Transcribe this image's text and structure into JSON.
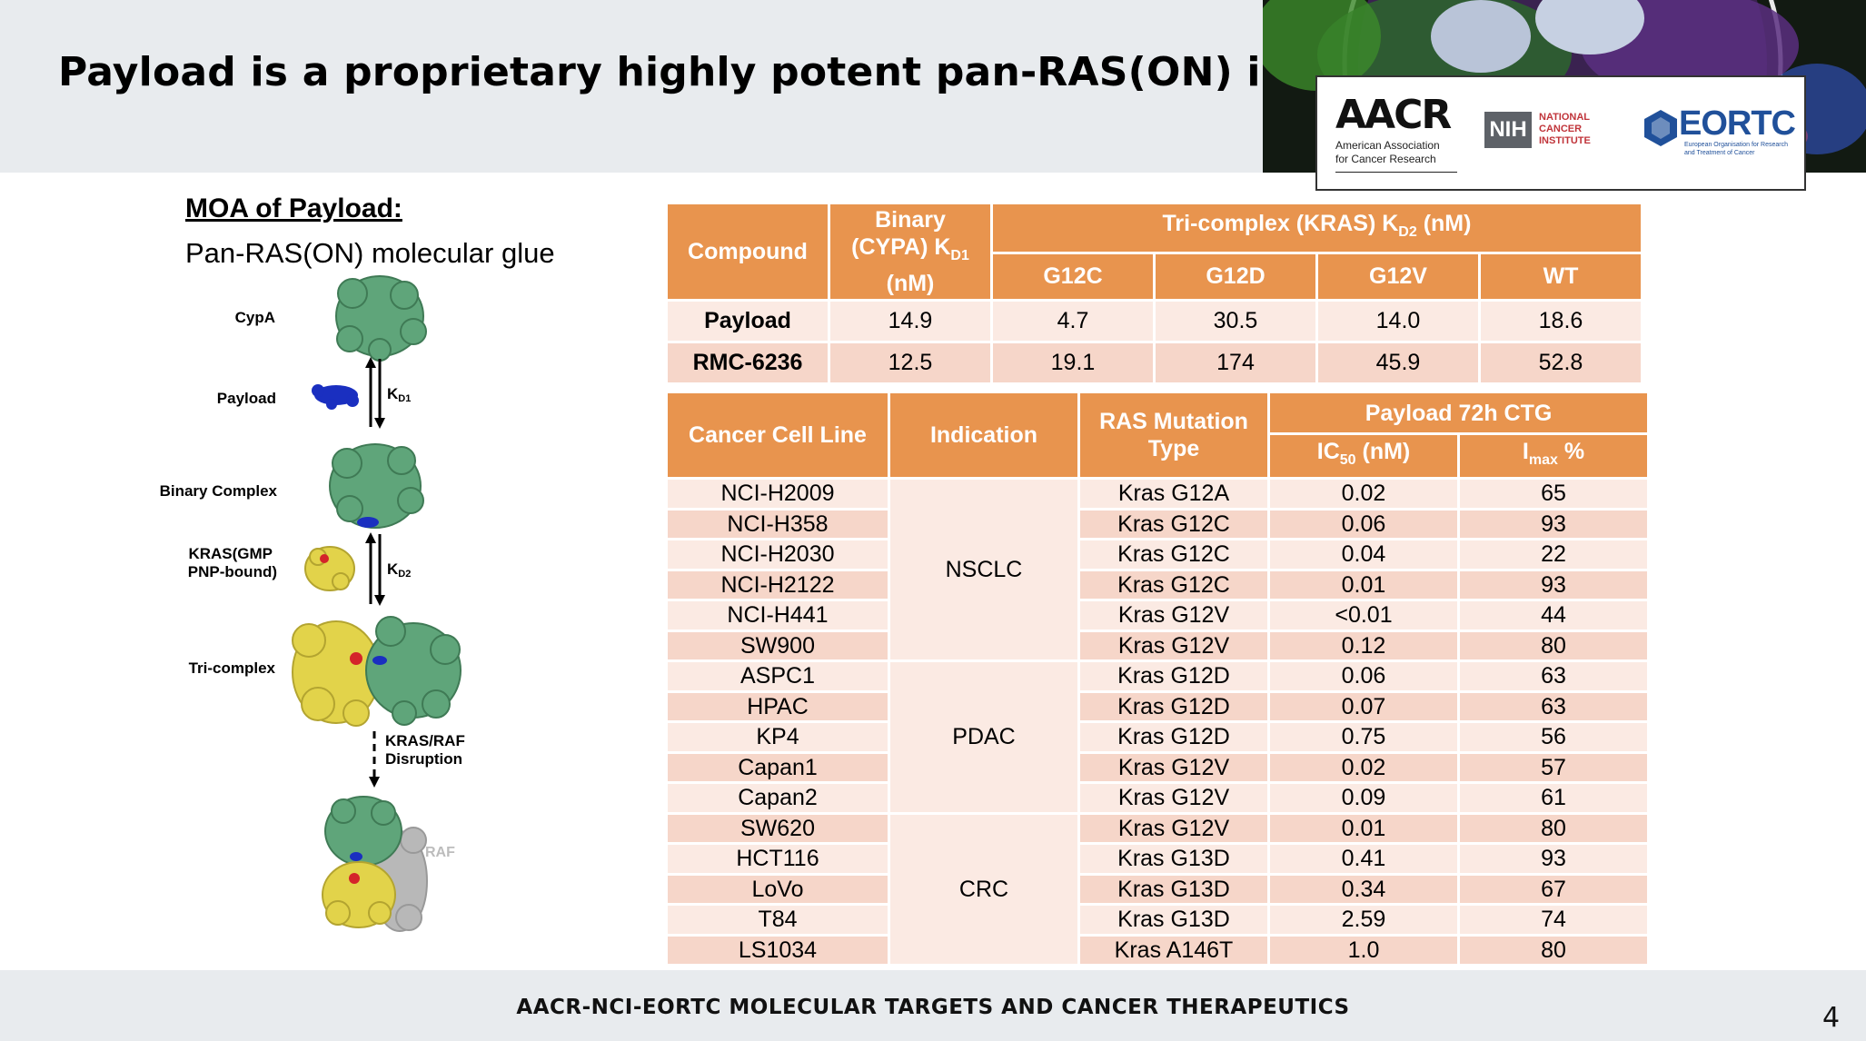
{
  "slide": {
    "title": "Payload is a proprietary highly potent pan-RAS(ON) inhibitor",
    "footer": "AACR-NCI-EORTC MOLECULAR TARGETS AND CANCER THERAPEUTICS",
    "page_number": "4"
  },
  "logos": {
    "aacr": "AACR",
    "aacr_sub_1": "American Association",
    "aacr_sub_2": "for Cancer Research",
    "nih": "NIH",
    "nci_1": "NATIONAL",
    "nci_2": "CANCER",
    "nci_3": "INSTITUTE",
    "eortc": "EORTC",
    "eortc_sub": "European Organisation for Research and Treatment of Cancer"
  },
  "moa": {
    "heading": "MOA of Payload:",
    "subheading": "Pan-RAS(ON) molecular glue",
    "labels": {
      "cypa": "CypA",
      "payload": "Payload",
      "kd1": "K",
      "kd1_sub": "D1",
      "binary": "Binary Complex",
      "kras_1": "KRAS(GMP",
      "kras_2": "PNP-bound)",
      "kd2": "K",
      "kd2_sub": "D2",
      "tricomplex": "Tri-complex",
      "disrupt_1": "KRAS/RAF",
      "disrupt_2": "Disruption",
      "raf": "RAF"
    }
  },
  "binding_table": {
    "headers": {
      "compound": "Compound",
      "binary_1": "Binary",
      "binary_2": "(CYPA) K",
      "binary_sub": "D1",
      "binary_3": "(nM)",
      "tri_1": "Tri-complex (KRAS) K",
      "tri_sub": "D2",
      "tri_2": " (nM)",
      "g12c": "G12C",
      "g12d": "G12D",
      "g12v": "G12V",
      "wt": "WT"
    },
    "rows": [
      {
        "compound": "Payload",
        "binary": "14.9",
        "g12c": "4.7",
        "g12d": "30.5",
        "g12v": "14.0",
        "wt": "18.6"
      },
      {
        "compound": "RMC-6236",
        "binary": "12.5",
        "g12c": "19.1",
        "g12d": "174",
        "g12v": "45.9",
        "wt": "52.8"
      }
    ]
  },
  "cell_table": {
    "headers": {
      "cell_line": "Cancer Cell Line",
      "indication": "Indication",
      "mutation_1": "RAS Mutation",
      "mutation_2": "Type",
      "group": "Payload 72h CTG",
      "ic50": "IC",
      "ic50_sub": "50",
      "ic50_unit": " (nM)",
      "imax": "I",
      "imax_sub": "max",
      "imax_unit": " %"
    },
    "indications": {
      "nsclc": "NSCLC",
      "pdac": "PDAC",
      "crc": "CRC"
    },
    "rows": [
      {
        "line": "NCI-H2009",
        "mutation": "Kras G12A",
        "ic50": "0.02",
        "imax": "65"
      },
      {
        "line": "NCI-H358",
        "mutation": "Kras G12C",
        "ic50": "0.06",
        "imax": "93"
      },
      {
        "line": "NCI-H2030",
        "mutation": "Kras G12C",
        "ic50": "0.04",
        "imax": "22"
      },
      {
        "line": "NCI-H2122",
        "mutation": "Kras G12C",
        "ic50": "0.01",
        "imax": "93"
      },
      {
        "line": "NCI-H441",
        "mutation": "Kras G12V",
        "ic50": "<0.01",
        "imax": "44"
      },
      {
        "line": "SW900",
        "mutation": "Kras G12V",
        "ic50": "0.12",
        "imax": "80"
      },
      {
        "line": "ASPC1",
        "mutation": "Kras G12D",
        "ic50": "0.06",
        "imax": "63"
      },
      {
        "line": "HPAC",
        "mutation": "Kras G12D",
        "ic50": "0.07",
        "imax": "63"
      },
      {
        "line": "KP4",
        "mutation": "Kras G12D",
        "ic50": "0.75",
        "imax": "56"
      },
      {
        "line": "Capan1",
        "mutation": "Kras G12V",
        "ic50": "0.02",
        "imax": "57"
      },
      {
        "line": "Capan2",
        "mutation": "Kras G12V",
        "ic50": "0.09",
        "imax": "61"
      },
      {
        "line": "SW620",
        "mutation": "Kras G12V",
        "ic50": "0.01",
        "imax": "80"
      },
      {
        "line": "HCT116",
        "mutation": "Kras G13D",
        "ic50": "0.41",
        "imax": "93"
      },
      {
        "line": "LoVo",
        "mutation": "Kras G13D",
        "ic50": "0.34",
        "imax": "67"
      },
      {
        "line": "T84",
        "mutation": "Kras G13D",
        "ic50": "2.59",
        "imax": "74"
      },
      {
        "line": "LS1034",
        "mutation": "Kras A146T",
        "ic50": "1.0",
        "imax": "80"
      }
    ]
  },
  "colors": {
    "header_orange": "#e8944e",
    "row_light": "#fbeae3",
    "row_dark": "#f6d6c9",
    "band_gray": "#e8ebee",
    "cypa_green": "#5fa57a",
    "kras_yellow": "#e2d34a",
    "payload_blue": "#1a2fc0",
    "raf_gray": "#b8b8b8"
  }
}
